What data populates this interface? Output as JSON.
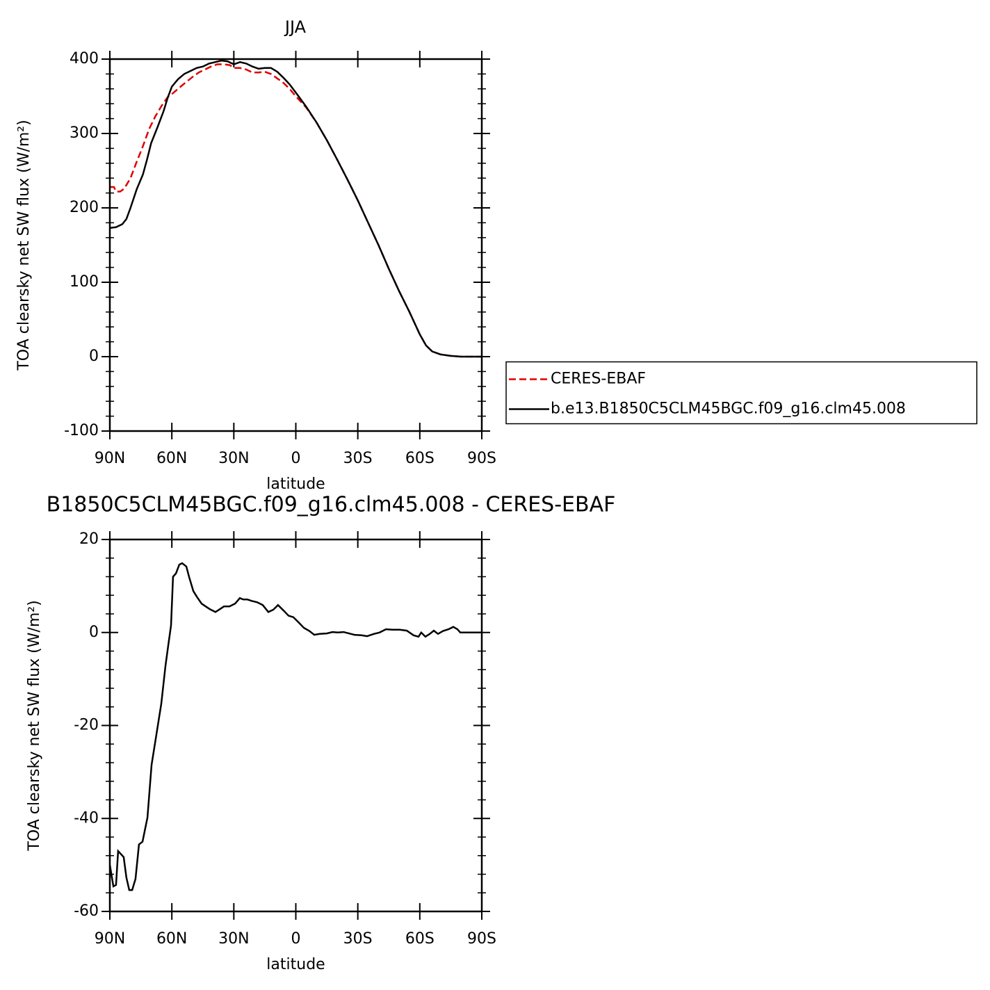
{
  "chart_data": [
    {
      "type": "line",
      "title": "JJA",
      "xlabel": "latitude",
      "ylabel": "TOA clearsky net SW flux (W/m²)",
      "xlim": [
        90,
        -90
      ],
      "xticks": [
        {
          "value": 90,
          "label": "90N"
        },
        {
          "value": 60,
          "label": "60N"
        },
        {
          "value": 30,
          "label": "30N"
        },
        0,
        {
          "value": -30,
          "label": "30S"
        },
        {
          "value": -60,
          "label": "60S"
        },
        {
          "value": -90,
          "label": "90S"
        }
      ],
      "ylim": [
        -100,
        400
      ],
      "yticks": [
        -100,
        0,
        100,
        200,
        300,
        400
      ],
      "legend": "right",
      "series": [
        {
          "name": "CERES-EBAF",
          "color": "#e00000",
          "linestyle": "dashed",
          "x": [
            90,
            88,
            87,
            85,
            83,
            80,
            77,
            74,
            71,
            68,
            65,
            62,
            60,
            57,
            54,
            50,
            47,
            44,
            41,
            38,
            35,
            32,
            30,
            27,
            24,
            21,
            18,
            15,
            12,
            9,
            6,
            3,
            0,
            -5,
            -10,
            -15,
            -20,
            -25,
            -30,
            -35,
            -40,
            -45,
            -50,
            -55,
            -60,
            -63,
            -66,
            -70,
            -75,
            -80,
            -85,
            -90
          ],
          "values": [
            228,
            228,
            222,
            222,
            226,
            240,
            262,
            283,
            306,
            323,
            337,
            349,
            353,
            360,
            367,
            376,
            382,
            386,
            390,
            393,
            393,
            392,
            388,
            388,
            386,
            382,
            382,
            383,
            380,
            374,
            368,
            360,
            350,
            335,
            315,
            291,
            265,
            238,
            210,
            180,
            150,
            118,
            88,
            60,
            30,
            15,
            7,
            3,
            1,
            0,
            0,
            0
          ]
        },
        {
          "name": "b.e13.B1850C5CLM45BGC.f09_g16.clm45.008",
          "color": "#000000",
          "linestyle": "solid",
          "x": [
            90,
            87,
            84,
            82,
            80,
            77,
            74,
            72,
            70,
            67,
            64,
            62,
            60,
            57,
            54,
            51,
            48,
            45,
            42,
            39,
            36,
            33,
            30,
            27,
            24,
            21,
            18,
            15,
            12,
            9,
            6,
            3,
            0,
            -5,
            -10,
            -15,
            -20,
            -25,
            -30,
            -35,
            -40,
            -45,
            -50,
            -55,
            -60,
            -63,
            -66,
            -70,
            -75,
            -80,
            -85,
            -90
          ],
          "values": [
            173,
            174,
            178,
            185,
            200,
            225,
            245,
            265,
            287,
            308,
            330,
            348,
            363,
            373,
            380,
            384,
            388,
            390,
            394,
            396,
            398,
            397,
            393,
            396,
            394,
            390,
            387,
            388,
            388,
            383,
            375,
            366,
            355,
            336,
            315,
            291,
            265,
            238,
            210,
            180,
            150,
            118,
            88,
            60,
            30,
            15,
            7,
            3,
            1,
            0,
            0,
            0
          ]
        }
      ]
    },
    {
      "type": "line",
      "title": "B1850C5CLM45BGC.f09_g16.clm45.008 - CERES-EBAF",
      "xlabel": "latitude",
      "ylabel": "TOA clearsky net SW flux (W/m²)",
      "xlim": [
        90,
        -90
      ],
      "xticks": [
        {
          "value": 90,
          "label": "90N"
        },
        {
          "value": 60,
          "label": "60N"
        },
        {
          "value": 30,
          "label": "30N"
        },
        0,
        {
          "value": -30,
          "label": "30S"
        },
        {
          "value": -60,
          "label": "60S"
        },
        {
          "value": -90,
          "label": "90S"
        }
      ],
      "ylim": [
        -60,
        20
      ],
      "yticks": [
        -60,
        -40,
        -20,
        0,
        20
      ],
      "series": [
        {
          "color": "#000000",
          "linestyle": "solid",
          "x": [
            90,
            88.3,
            87,
            86,
            83.3,
            82,
            80.6,
            79.2,
            77.6,
            75.9,
            74.2,
            71.8,
            69.8,
            67.5,
            65.1,
            63.1,
            61.8,
            60.4,
            59.4,
            58,
            56.4,
            55,
            53,
            51.6,
            49.6,
            47.9,
            45.6,
            43.6,
            41.6,
            38.9,
            36.8,
            34.8,
            32.1,
            29.4,
            27.1,
            25.4,
            23.4,
            21.4,
            18.7,
            16,
            13.3,
            10.9,
            8.6,
            5.9,
            3.5,
            1.2,
            -1.5,
            -3.9,
            -6.6,
            -8.9,
            -11.6,
            -15,
            -17.7,
            -20.4,
            -23.1,
            -25.7,
            -28.4,
            -31.8,
            -34.5,
            -37.8,
            -40.5,
            -43.6,
            -46.9,
            -50.3,
            -53.7,
            -57,
            -59.4,
            -60.7,
            -62.7,
            -64.8,
            -66.8,
            -68.8,
            -71.2,
            -73.9,
            -76.2,
            -78.2,
            -79.6,
            -90
          ],
          "values": [
            -50,
            -54.6,
            -54.3,
            -47,
            -48.3,
            -52.7,
            -55.4,
            -55.4,
            -53,
            -45.6,
            -45,
            -39.8,
            -28.5,
            -22,
            -15.3,
            -7.2,
            -3,
            1.5,
            12,
            12.7,
            14.6,
            14.9,
            14.2,
            11.9,
            8.9,
            7.7,
            6.2,
            5.6,
            5,
            4.4,
            5,
            5.6,
            5.6,
            6.2,
            7.4,
            7.1,
            7.1,
            6.8,
            6.5,
            5.9,
            4.4,
            4.9,
            5.9,
            4.7,
            3.6,
            3.3,
            2.1,
            1,
            0.3,
            -0.5,
            -0.3,
            -0.2,
            0.1,
            0,
            0.1,
            -0.2,
            -0.5,
            -0.6,
            -0.8,
            -0.3,
            0,
            0.7,
            0.6,
            0.6,
            0.4,
            -0.6,
            -0.9,
            0,
            -0.9,
            -0.3,
            0.4,
            -0.3,
            0.3,
            0.7,
            1.2,
            0.7,
            0,
            0
          ]
        }
      ]
    }
  ]
}
